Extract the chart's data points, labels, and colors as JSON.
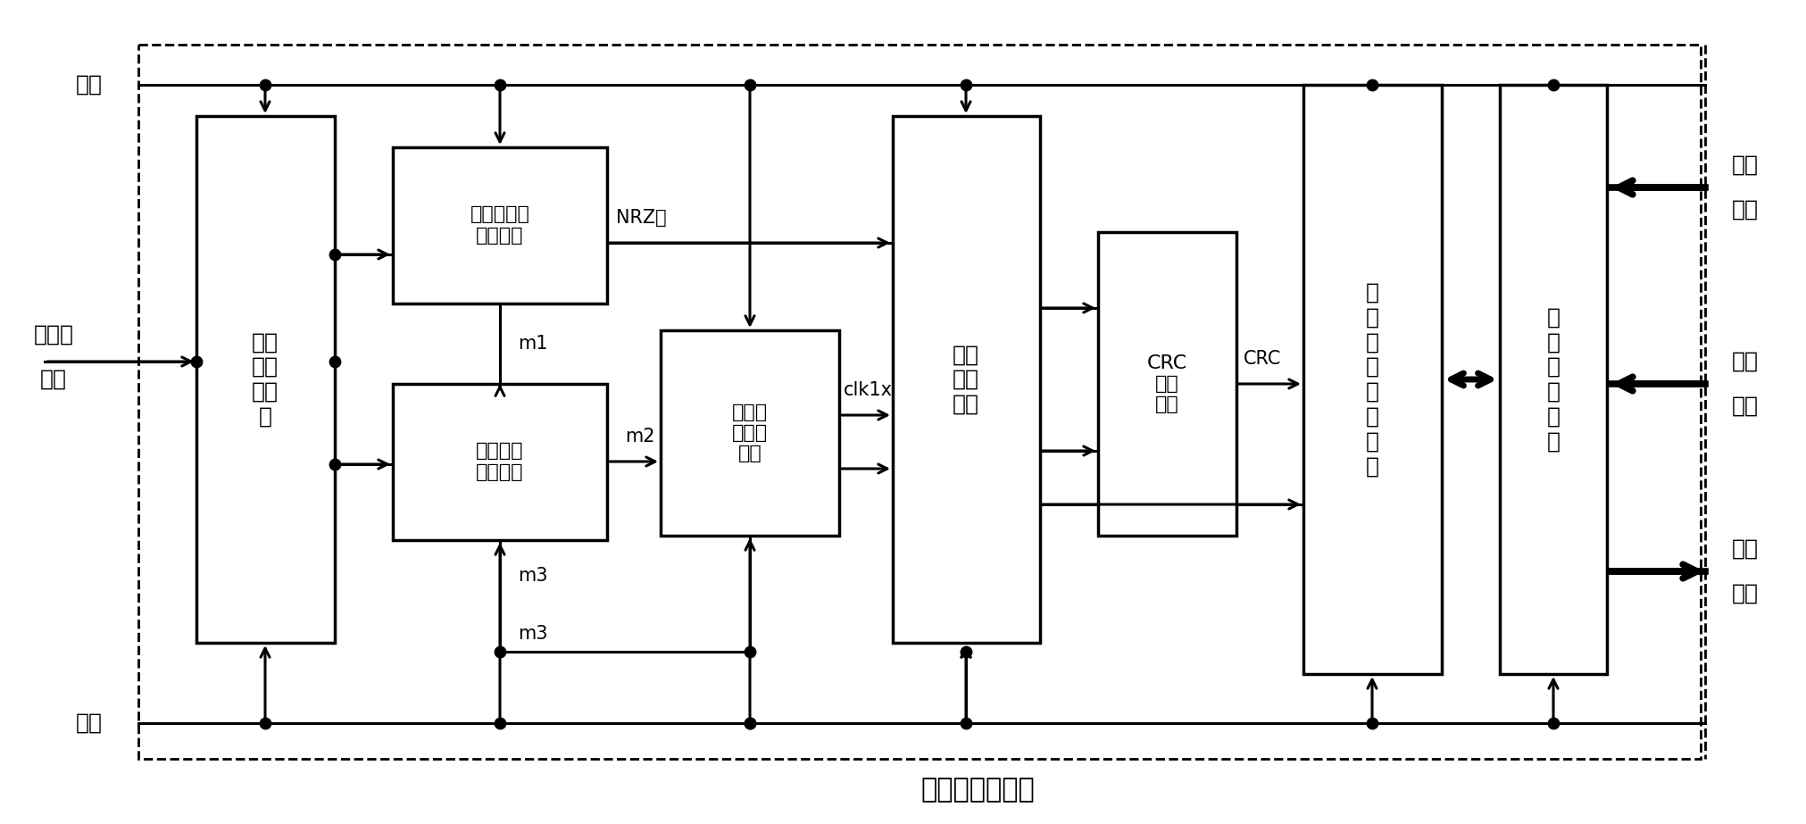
{
  "figsize": [
    20.24,
    9.23
  ],
  "dpi": 100,
  "bg": "#ffffff",
  "title": "可编程逻辑器件",
  "label_shijhong": "时钟",
  "label_bianmaqi": "编码器",
  "label_xinhao": "信号",
  "label_fuwei": "复位",
  "label_kongzhi": "控制",
  "label_zongxian": "总线",
  "label_dizhi": "地址",
  "label_shuju": "数据",
  "box_sync_head_label": "同步\n头检\n测单\n元",
  "box_manchester_label": "曼彿斯特码\n解码单元",
  "box_enable_label": "使能信号\n产生单元",
  "box_sync_clk_label": "同步时\n钟提取\n单元",
  "box_sp_label": "串并\n转换\n单元",
  "box_crc_label": "CRC\n校验\n单元",
  "box_dr_label": "数\n据\n寄\n存\n器\n组\n单\n元",
  "box_pi_label": "并\n行\n接\n口\n单\n元",
  "wire_nrz": "NRZ码",
  "wire_m1": "m1",
  "wire_m2": "m2",
  "wire_m3": "m3",
  "wire_clk1x": "clk1x",
  "wire_crc": "CRC"
}
